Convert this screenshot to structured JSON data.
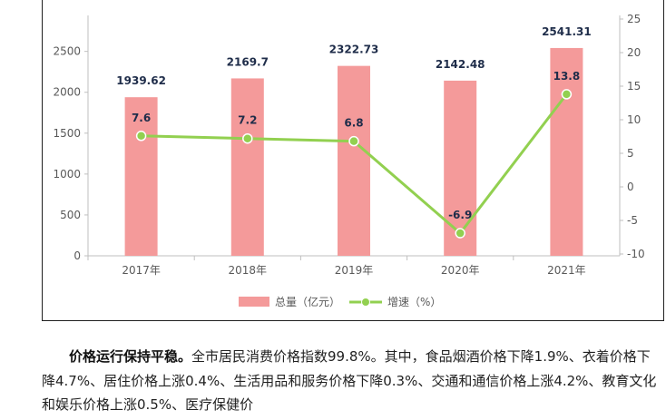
{
  "chart_data": {
    "type": "bar",
    "categories": [
      "2017年",
      "2018年",
      "2019年",
      "2020年",
      "2021年"
    ],
    "series": [
      {
        "name": "总量（亿元）",
        "type": "bar",
        "axis": "left",
        "color": "#f49a9a",
        "values": [
          1939.62,
          2169.7,
          2322.73,
          2142.48,
          2541.31
        ],
        "labels": [
          "1939.62",
          "2169.7",
          "2322.73",
          "2142.48",
          "2541.31"
        ]
      },
      {
        "name": "增速（%）",
        "type": "line",
        "axis": "right",
        "color": "#92d050",
        "values": [
          7.6,
          7.2,
          6.8,
          -6.9,
          13.8
        ],
        "labels": [
          "7.6",
          "7.2",
          "6.8",
          "-6.9",
          "13.8"
        ]
      }
    ],
    "y_left": {
      "ticks": [
        "0",
        "500",
        "1000",
        "1500",
        "2000",
        "2500"
      ],
      "range": [
        0,
        2940
      ]
    },
    "y_right": {
      "ticks": [
        "-10",
        "-5",
        "0",
        "5",
        "10",
        "15",
        "20",
        "25"
      ],
      "range": [
        -10,
        25
      ]
    },
    "legend_position": "bottom",
    "grid": false
  },
  "paragraph": {
    "lead": "价格运行保持平稳。",
    "text": "全市居民消费价格指数99.8%。其中，食品烟酒价格下降1.9%、衣着价格下降4.7%、居住价格上涨0.4%、生活用品和服务价格下降0.3%、交通和通信价格上涨4.2%、教育文化和娱乐价格上涨0.5%、医疗保健价"
  }
}
